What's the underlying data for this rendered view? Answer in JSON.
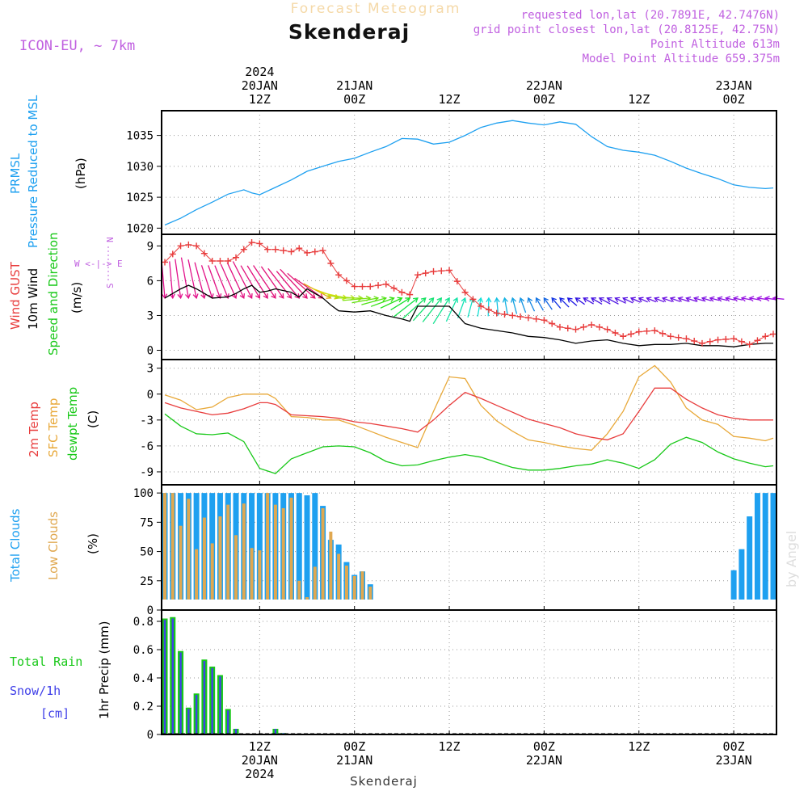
{
  "header": {
    "product": "Forecast Meteogram",
    "location": "Skenderaj",
    "model": "ICON-EU, ~ 7km",
    "requested": "requested lon,lat (20.7891E, 42.7476N)",
    "gridpoint": "grid point closest lon,lat (20.8125E, 42.75N)",
    "point_alt": "Point Altitude 613m",
    "model_alt": "Model Point Altitude 659.375m",
    "credit": "by Angel",
    "footer": "Skenderaj"
  },
  "colors": {
    "title": "#f5d9a8",
    "magenta": "#c060e0",
    "pressure": "#1ea0f0",
    "gust": "#e83c3c",
    "wind": "#000000",
    "speed": "#18c818",
    "sfc": "#e8a838",
    "dewpt": "#18c818",
    "low": "#e0a850",
    "total": "#1ea0f0",
    "rain": "#18c818",
    "snow": "#4040e8"
  },
  "time_axis": {
    "top": [
      {
        "t": 12,
        "lines": [
          "2024",
          "20JAN",
          "12Z"
        ]
      },
      {
        "t": 24,
        "lines": [
          "21JAN",
          "00Z"
        ]
      },
      {
        "t": 36,
        "lines": [
          "12Z"
        ]
      },
      {
        "t": 48,
        "lines": [
          "22JAN",
          "00Z"
        ]
      },
      {
        "t": 60,
        "lines": [
          "12Z"
        ]
      },
      {
        "t": 72,
        "lines": [
          "23JAN",
          "00Z"
        ]
      }
    ],
    "bottom": [
      {
        "t": 12,
        "lines": [
          "12Z",
          "20JAN",
          "2024"
        ]
      },
      {
        "t": 24,
        "lines": [
          "00Z",
          "21JAN"
        ]
      },
      {
        "t": 36,
        "lines": [
          "12Z"
        ]
      },
      {
        "t": 48,
        "lines": [
          "00Z",
          "22JAN"
        ]
      },
      {
        "t": 60,
        "lines": [
          "12Z"
        ]
      },
      {
        "t": 72,
        "lines": [
          "00Z",
          "23JAN"
        ]
      }
    ]
  },
  "chart_data": [
    {
      "type": "line",
      "panel": "pressure",
      "labels": [
        "PRMSL",
        "Pressure Reduced to MSL"
      ],
      "ylabel": "(hPa)",
      "ylim": [
        1019,
        1039
      ],
      "yticks": [
        1020,
        1025,
        1030,
        1035
      ],
      "grid": true,
      "x": [
        0,
        2,
        4,
        6,
        8,
        10,
        11,
        12,
        14,
        16,
        18,
        20,
        22,
        24,
        26,
        28,
        30,
        32,
        34,
        36,
        38,
        40,
        42,
        44,
        46,
        48,
        50,
        52,
        54,
        56,
        58,
        60,
        62,
        64,
        66,
        68,
        70,
        72,
        74,
        76,
        77
      ],
      "series": [
        {
          "name": "PRMSL",
          "values": [
            1020.5,
            1021.6,
            1023.0,
            1024.2,
            1025.5,
            1026.2,
            1025.7,
            1025.4,
            1026.6,
            1027.8,
            1029.2,
            1030.0,
            1030.8,
            1031.3,
            1032.3,
            1033.2,
            1034.5,
            1034.4,
            1033.6,
            1033.9,
            1035.0,
            1036.3,
            1037.0,
            1037.4,
            1037.0,
            1036.7,
            1037.2,
            1036.8,
            1034.8,
            1033.2,
            1032.6,
            1032.3,
            1031.8,
            1030.8,
            1029.7,
            1028.8,
            1028.0,
            1027.0,
            1026.6,
            1026.4,
            1026.5
          ]
        }
      ]
    },
    {
      "type": "line",
      "panel": "wind",
      "labels": [
        "Wind GUST",
        "10m Wind",
        "Speed and Direction"
      ],
      "ylabel": "(m/s)",
      "compass": [
        "N",
        "W <-|-> E",
        "S"
      ],
      "ylim": [
        -0.8,
        10
      ],
      "yticks": [
        0,
        3,
        6,
        9
      ],
      "grid": true,
      "x": [
        0,
        2,
        3,
        4,
        6,
        8,
        9,
        10,
        11,
        12,
        13,
        14,
        16,
        17,
        18,
        20,
        21,
        22,
        24,
        26,
        28,
        30,
        31,
        32,
        34,
        36,
        38,
        40,
        42,
        44,
        46,
        48,
        50,
        52,
        54,
        56,
        58,
        60,
        62,
        64,
        66,
        68,
        70,
        72,
        74,
        76,
        77
      ],
      "series": [
        {
          "name": "Wind GUST",
          "values": [
            7.6,
            9.0,
            9.1,
            9.0,
            7.7,
            7.7,
            8.0,
            8.7,
            9.3,
            9.2,
            8.7,
            8.7,
            8.5,
            8.8,
            8.4,
            8.6,
            7.5,
            6.5,
            5.5,
            5.5,
            5.7,
            5.0,
            4.8,
            6.5,
            6.8,
            6.9,
            5.0,
            3.8,
            3.2,
            3.0,
            2.8,
            2.6,
            2.0,
            1.8,
            2.2,
            1.8,
            1.2,
            1.6,
            1.7,
            1.2,
            1.0,
            0.6,
            0.9,
            1.0,
            0.5,
            1.2,
            1.4
          ]
        },
        {
          "name": "10m Wind",
          "values": [
            4.5,
            5.3,
            5.6,
            5.3,
            4.5,
            4.6,
            4.9,
            5.3,
            5.6,
            5.0,
            5.1,
            5.3,
            5.0,
            4.6,
            5.3,
            4.5,
            3.9,
            3.4,
            3.3,
            3.4,
            3.0,
            2.7,
            2.5,
            3.8,
            3.8,
            3.8,
            2.3,
            1.9,
            1.7,
            1.5,
            1.2,
            1.1,
            0.9,
            0.6,
            0.8,
            0.9,
            0.6,
            0.4,
            0.5,
            0.5,
            0.6,
            0.4,
            0.4,
            0.3,
            0.5,
            0.6,
            0.6
          ]
        }
      ],
      "wind_arrows": {
        "x": [
          0,
          1,
          2,
          3,
          4,
          5,
          6,
          7,
          8,
          9,
          10,
          11,
          12,
          13,
          14,
          15,
          16,
          17,
          18,
          19,
          20,
          21,
          22,
          23,
          24,
          25,
          26,
          27,
          28,
          29,
          30,
          31,
          32,
          33,
          34,
          35,
          36,
          37,
          38,
          39,
          40,
          41,
          42,
          43,
          44,
          45,
          46,
          47,
          48,
          49,
          50,
          51,
          52,
          53,
          54,
          55,
          56,
          57,
          58,
          59,
          60,
          61,
          62,
          63,
          64,
          65,
          66,
          67,
          68,
          69,
          70,
          71,
          72,
          73,
          74,
          75,
          76,
          77
        ],
        "dir": [
          355,
          355,
          352,
          350,
          348,
          345,
          342,
          340,
          338,
          336,
          335,
          333,
          330,
          328,
          326,
          325,
          322,
          320,
          317,
          312,
          305,
          298,
          290,
          282,
          275,
          270,
          265,
          260,
          255,
          250,
          245,
          238,
          232,
          228,
          222,
          218,
          212,
          205,
          200,
          195,
          190,
          182,
          175,
          170,
          165,
          160,
          155,
          150,
          145,
          140,
          135,
          130,
          125,
          120,
          120,
          118,
          118,
          116,
          116,
          114,
          114,
          112,
          112,
          110,
          110,
          108,
          108,
          106,
          106,
          104,
          104,
          102,
          102,
          100,
          100,
          98,
          98,
          96
        ]
      }
    },
    {
      "type": "line",
      "panel": "temperature",
      "labels": [
        "2m Temp",
        "SFC Temp",
        "dewpt Temp"
      ],
      "ylabel": "(C)",
      "ylim": [
        -10.5,
        4
      ],
      "yticks": [
        3,
        0,
        -3,
        -6,
        -9
      ],
      "grid": true,
      "x": [
        0,
        2,
        4,
        6,
        8,
        10,
        12,
        13,
        14,
        16,
        18,
        20,
        22,
        24,
        26,
        28,
        30,
        32,
        34,
        36,
        38,
        40,
        42,
        44,
        46,
        48,
        50,
        52,
        54,
        56,
        58,
        60,
        62,
        64,
        66,
        68,
        70,
        72,
        74,
        76,
        77
      ],
      "series": [
        {
          "name": "2m Temp",
          "values": [
            -1.0,
            -1.6,
            -2.0,
            -2.4,
            -2.2,
            -1.7,
            -1.0,
            -1.0,
            -1.2,
            -2.4,
            -2.5,
            -2.6,
            -2.8,
            -3.2,
            -3.4,
            -3.7,
            -4.0,
            -4.4,
            -3.0,
            -1.3,
            0.2,
            -0.5,
            -1.3,
            -2.1,
            -2.9,
            -3.4,
            -3.9,
            -4.6,
            -5.0,
            -5.3,
            -4.6,
            -2.0,
            0.7,
            0.7,
            -0.6,
            -1.6,
            -2.4,
            -2.8,
            -3.0,
            -3.0,
            -3.0
          ]
        },
        {
          "name": "SFC Temp",
          "values": [
            -0.1,
            -0.7,
            -1.8,
            -1.5,
            -0.4,
            0.0,
            0.0,
            0.0,
            -0.5,
            -2.6,
            -2.7,
            -3.0,
            -3.0,
            -3.6,
            -4.3,
            -5.0,
            -5.6,
            -6.2,
            -2.0,
            2.0,
            1.8,
            -1.3,
            -3.1,
            -4.3,
            -5.3,
            -5.6,
            -6.0,
            -6.3,
            -6.5,
            -4.6,
            -2.0,
            2.0,
            3.3,
            1.4,
            -1.6,
            -3.0,
            -3.5,
            -4.9,
            -5.1,
            -5.4,
            -5.1
          ]
        },
        {
          "name": "dewpt Temp",
          "values": [
            -2.3,
            -3.7,
            -4.6,
            -4.7,
            -4.5,
            -5.5,
            -8.6,
            -8.9,
            -9.2,
            -7.5,
            -6.8,
            -6.1,
            -6.0,
            -6.1,
            -6.8,
            -7.8,
            -8.3,
            -8.2,
            -7.7,
            -7.3,
            -7.0,
            -7.3,
            -7.9,
            -8.5,
            -8.8,
            -8.8,
            -8.6,
            -8.3,
            -8.1,
            -7.6,
            -8.0,
            -8.6,
            -7.6,
            -5.8,
            -5.0,
            -5.6,
            -6.7,
            -7.5,
            -8.0,
            -8.4,
            -8.3
          ]
        }
      ]
    },
    {
      "type": "bar",
      "panel": "clouds",
      "labels": [
        "Total Clouds",
        "Low Clouds"
      ],
      "ylabel": "(%)",
      "ylim": [
        0,
        107
      ],
      "yticks": [
        0,
        25,
        50,
        75,
        100
      ],
      "grid": true,
      "x": [
        0,
        1,
        2,
        3,
        4,
        5,
        6,
        7,
        8,
        9,
        10,
        11,
        12,
        13,
        14,
        15,
        16,
        17,
        18,
        19,
        20,
        21,
        22,
        23,
        24,
        25,
        26,
        27,
        28,
        29,
        30,
        31,
        32,
        33,
        34,
        35,
        36,
        37,
        38,
        39,
        40,
        41,
        42,
        43,
        44,
        45,
        46,
        47,
        48,
        49,
        50,
        51,
        52,
        53,
        54,
        55,
        56,
        57,
        58,
        59,
        60,
        61,
        62,
        63,
        64,
        65,
        66,
        67,
        68,
        69,
        70,
        71,
        72,
        73,
        74,
        75,
        76,
        77
      ],
      "series": [
        {
          "name": "Total Clouds",
          "values": [
            100,
            100,
            100,
            100,
            100,
            100,
            100,
            100,
            100,
            100,
            100,
            100,
            100,
            100,
            100,
            100,
            100,
            100,
            98,
            100,
            89,
            60,
            56,
            41,
            30,
            33,
            22,
            5,
            0,
            0,
            0,
            0,
            0,
            0,
            0,
            0,
            0,
            0,
            0,
            0,
            0,
            0,
            0,
            0,
            0,
            0,
            0,
            0,
            0,
            0,
            0,
            0,
            0,
            0,
            0,
            0,
            0,
            0,
            0,
            0,
            0,
            0,
            0,
            0,
            0,
            0,
            0,
            0,
            0,
            0,
            0,
            0,
            34,
            52,
            80,
            100,
            100,
            100
          ]
        },
        {
          "name": "Low Clouds",
          "values": [
            100,
            100,
            72,
            95,
            52,
            79,
            57,
            80,
            90,
            64,
            91,
            53,
            51,
            100,
            90,
            87,
            96,
            25,
            11,
            37,
            87,
            67,
            48,
            38,
            29,
            33,
            20,
            5,
            0,
            0,
            0,
            0,
            0,
            0,
            0,
            0,
            0,
            0,
            0,
            0,
            0,
            0,
            0,
            0,
            0,
            0,
            0,
            0,
            0,
            0,
            0,
            0,
            0,
            0,
            0,
            0,
            0,
            0,
            0,
            0,
            0,
            0,
            0,
            0,
            0,
            0,
            0,
            0,
            0,
            0,
            0,
            0,
            0,
            0,
            0,
            0,
            0,
            0
          ]
        }
      ]
    },
    {
      "type": "bar",
      "panel": "precipitation",
      "labels": [
        "Total Rain",
        "Snow/1h",
        "[cm]"
      ],
      "ylabel": "1hr Precip (mm)",
      "ylim": [
        0,
        0.88
      ],
      "yticks": [
        0,
        0.2,
        0.4,
        0.6,
        0.8
      ],
      "grid": true,
      "x": [
        0,
        1,
        2,
        3,
        4,
        5,
        6,
        7,
        8,
        9,
        10,
        11,
        12,
        13,
        14,
        15,
        16,
        17,
        18,
        19,
        20,
        21,
        22,
        23,
        24,
        25,
        26,
        27,
        28,
        29,
        30,
        31,
        32,
        33,
        34,
        35,
        36,
        37,
        38,
        39,
        40,
        41,
        42,
        43,
        44,
        45,
        46,
        47,
        48,
        49,
        50,
        51,
        52,
        53,
        54,
        55,
        56,
        57,
        58,
        59,
        60,
        61,
        62,
        63,
        64,
        65,
        66,
        67,
        68,
        69,
        70,
        71,
        72,
        73,
        74,
        75,
        76,
        77
      ],
      "series": [
        {
          "name": "Total Rain",
          "values": [
            0.82,
            0.83,
            0.59,
            0.19,
            0.29,
            0.53,
            0.48,
            0.42,
            0.18,
            0.04,
            0,
            0,
            0,
            0,
            0.04,
            0.01,
            0,
            0,
            0,
            0,
            0,
            0,
            0,
            0,
            0,
            0,
            0,
            0,
            0,
            0,
            0,
            0,
            0,
            0,
            0,
            0,
            0,
            0,
            0,
            0,
            0,
            0,
            0,
            0,
            0,
            0,
            0,
            0,
            0,
            0,
            0,
            0,
            0,
            0,
            0,
            0,
            0,
            0,
            0,
            0,
            0,
            0,
            0,
            0,
            0,
            0,
            0,
            0,
            0,
            0,
            0,
            0,
            0,
            0,
            0,
            0,
            0,
            0
          ]
        },
        {
          "name": "Snow/1h",
          "values": [
            0.81,
            0.82,
            0.58,
            0.18,
            0.28,
            0.52,
            0.47,
            0.41,
            0.17,
            0.04,
            0,
            0,
            0,
            0,
            0.04,
            0.01,
            0,
            0,
            0,
            0,
            0,
            0,
            0,
            0,
            0,
            0,
            0,
            0,
            0,
            0,
            0,
            0,
            0,
            0,
            0,
            0,
            0,
            0,
            0,
            0,
            0,
            0,
            0,
            0,
            0,
            0,
            0,
            0,
            0,
            0,
            0,
            0,
            0,
            0,
            0,
            0,
            0,
            0,
            0,
            0,
            0,
            0,
            0,
            0,
            0,
            0,
            0,
            0,
            0,
            0,
            0,
            0,
            0,
            0,
            0,
            0,
            0,
            0
          ]
        }
      ]
    }
  ]
}
